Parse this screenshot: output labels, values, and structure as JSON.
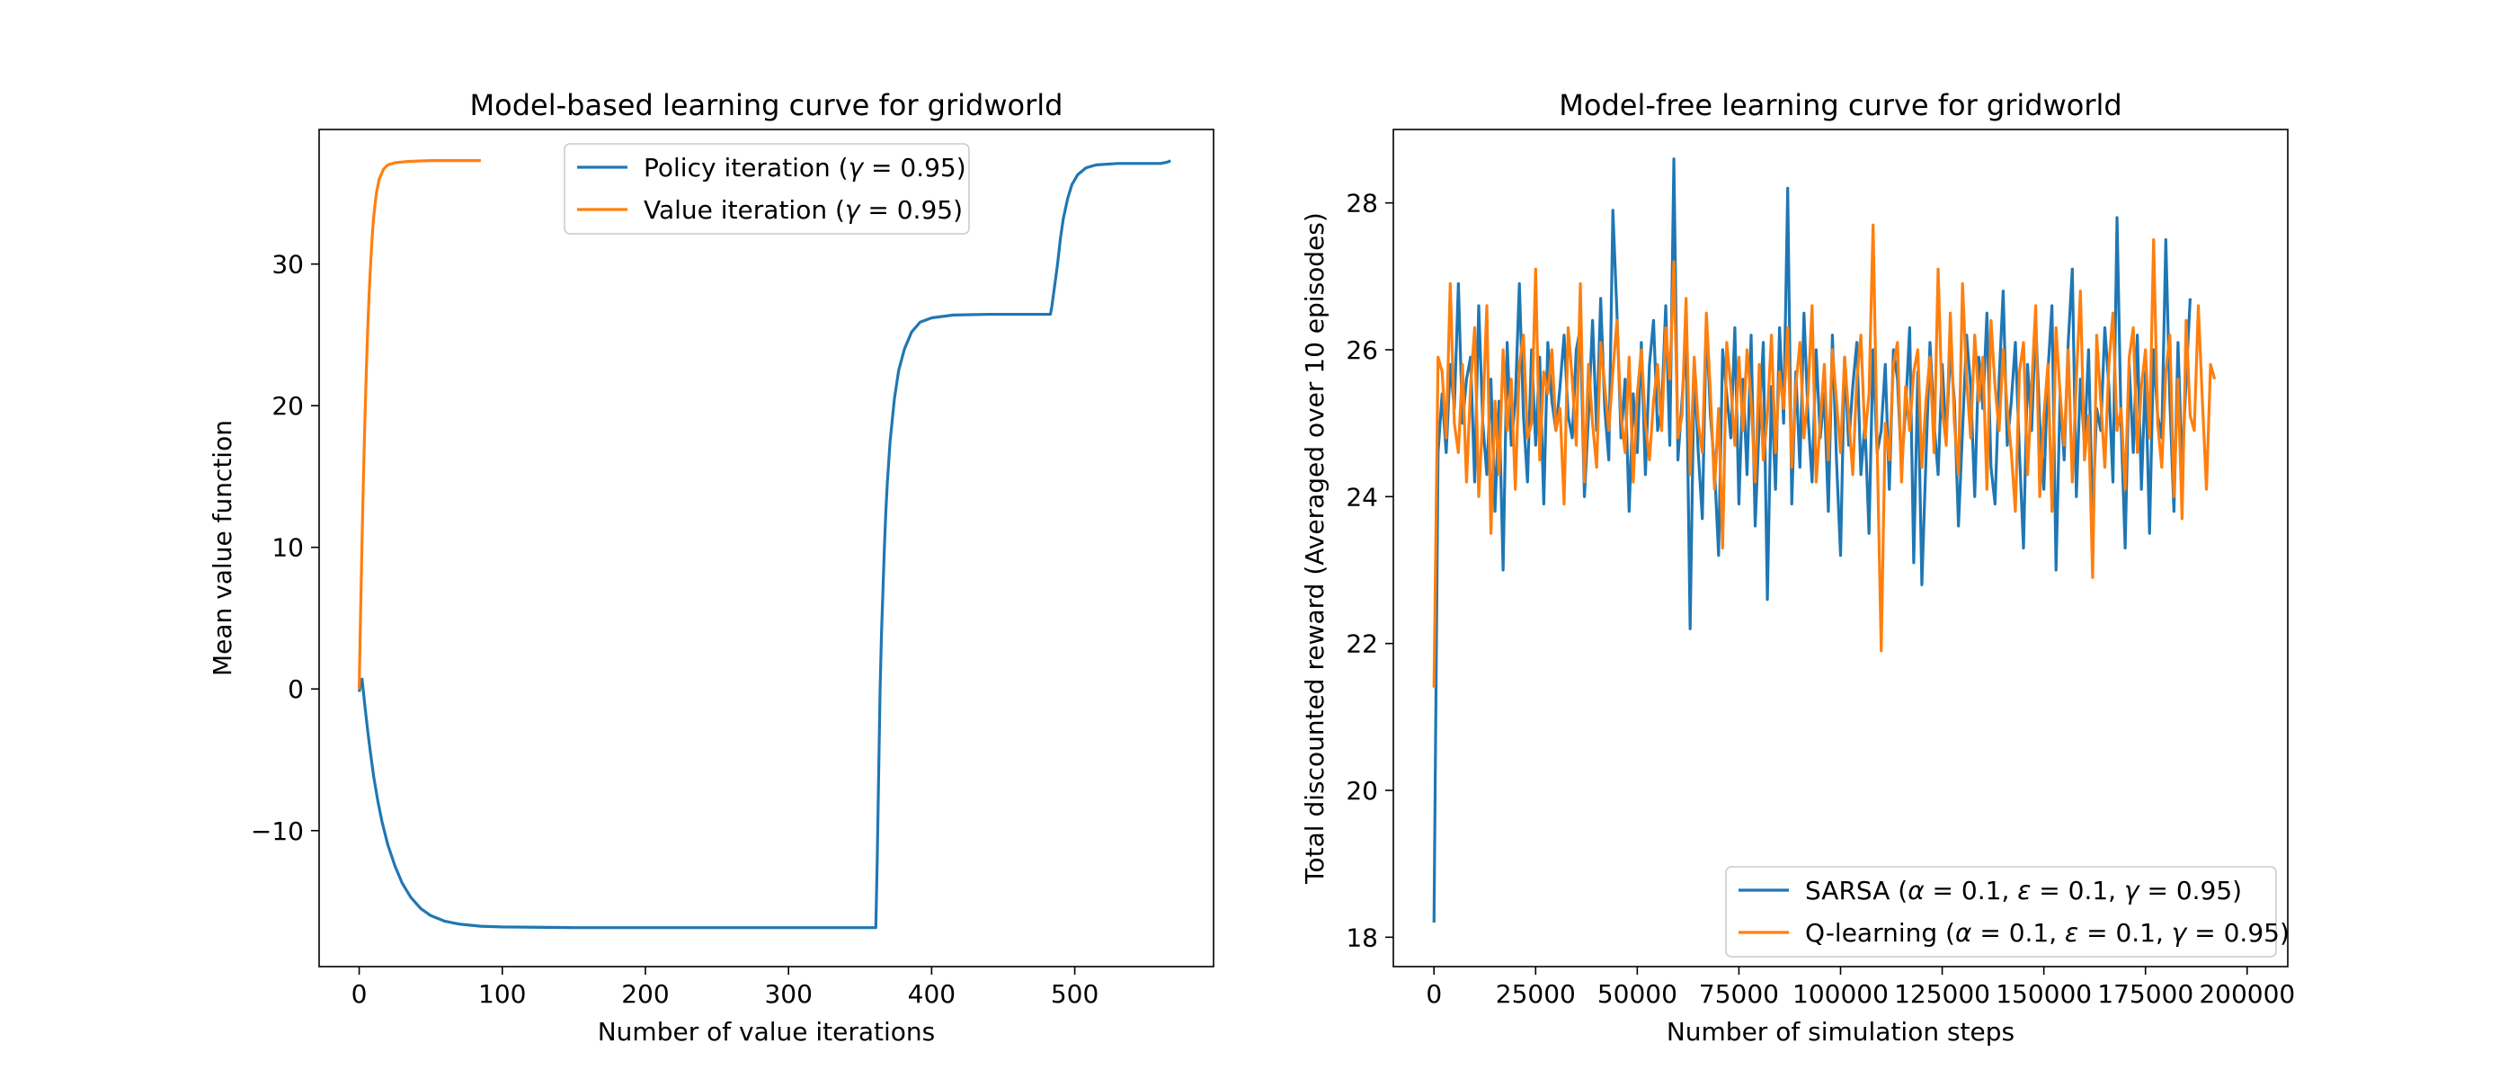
{
  "chart_data": [
    {
      "type": "line",
      "title": "Model-based learning curve for gridworld",
      "xlabel": "Number of value iterations",
      "ylabel": "Mean value function",
      "xlim": [
        -28,
        597
      ],
      "ylim": [
        -19.6,
        39.5
      ],
      "xticks": [
        0,
        100,
        200,
        300,
        400,
        500
      ],
      "yticks": [
        -10,
        0,
        10,
        20,
        30
      ],
      "ytick_labels": [
        "−10",
        "0",
        "10",
        "20",
        "30"
      ],
      "grid": false,
      "legend_position": "upper-center",
      "series": [
        {
          "name": "Policy iteration (γ = 0.95)",
          "name_parts": [
            "Policy iteration (",
            "γ",
            " = 0.95)"
          ],
          "color": "#1f77b4",
          "points": [
            [
              0,
              -0.2
            ],
            [
              2,
              0.7
            ],
            [
              4,
              -1.2
            ],
            [
              6,
              -3.0
            ],
            [
              8,
              -4.6
            ],
            [
              10,
              -6.1
            ],
            [
              13,
              -7.9
            ],
            [
              16,
              -9.4
            ],
            [
              20,
              -11.0
            ],
            [
              25,
              -12.5
            ],
            [
              30,
              -13.7
            ],
            [
              36,
              -14.7
            ],
            [
              43,
              -15.5
            ],
            [
              50,
              -16.0
            ],
            [
              60,
              -16.4
            ],
            [
              70,
              -16.6
            ],
            [
              85,
              -16.75
            ],
            [
              100,
              -16.8
            ],
            [
              150,
              -16.85
            ],
            [
              200,
              -16.85
            ],
            [
              250,
              -16.85
            ],
            [
              300,
              -16.85
            ],
            [
              361,
              -16.85
            ],
            [
              362,
              -12.0
            ],
            [
              363,
              -6.0
            ],
            [
              364,
              0.0
            ],
            [
              365,
              4.0
            ],
            [
              366,
              7.0
            ],
            [
              367,
              10.0
            ],
            [
              368,
              12.5
            ],
            [
              369,
              14.5
            ],
            [
              370,
              16.0
            ],
            [
              371,
              17.5
            ],
            [
              372,
              18.5
            ],
            [
              374,
              20.5
            ],
            [
              377,
              22.5
            ],
            [
              381,
              24.0
            ],
            [
              386,
              25.2
            ],
            [
              392,
              25.9
            ],
            [
              400,
              26.2
            ],
            [
              415,
              26.4
            ],
            [
              440,
              26.45
            ],
            [
              483,
              26.45
            ],
            [
              484,
              27.0
            ],
            [
              486,
              28.5
            ],
            [
              488,
              30.0
            ],
            [
              490,
              31.8
            ],
            [
              492,
              33.2
            ],
            [
              495,
              34.6
            ],
            [
              498,
              35.6
            ],
            [
              502,
              36.3
            ],
            [
              508,
              36.8
            ],
            [
              515,
              37.0
            ],
            [
              530,
              37.1
            ],
            [
              560,
              37.1
            ],
            [
              565,
              37.2
            ],
            [
              567,
              37.3
            ]
          ]
        },
        {
          "name": "Value iteration (γ = 0.95)",
          "name_parts": [
            "Value iteration (",
            "γ",
            " = 0.95)"
          ],
          "color": "#ff7f0e",
          "points": [
            [
              0,
              0
            ],
            [
              1,
              5.5
            ],
            [
              2,
              10.5
            ],
            [
              3,
              15.0
            ],
            [
              4,
              19.0
            ],
            [
              5,
              22.5
            ],
            [
              6,
              25.5
            ],
            [
              7,
              28.0
            ],
            [
              8,
              30.0
            ],
            [
              9,
              31.8
            ],
            [
              10,
              33.2
            ],
            [
              12,
              35.0
            ],
            [
              14,
              36.0
            ],
            [
              17,
              36.7
            ],
            [
              20,
              37.0
            ],
            [
              25,
              37.15
            ],
            [
              35,
              37.25
            ],
            [
              50,
              37.3
            ],
            [
              70,
              37.3
            ],
            [
              85,
              37.3
            ]
          ]
        }
      ]
    },
    {
      "type": "line",
      "title": "Model-free learning curve for gridworld",
      "xlabel": "Number of simulation steps",
      "ylabel": "Total discounted reward (Averaged over 10 episodes)",
      "xlim": [
        -10000,
        210000
      ],
      "ylim": [
        17.6,
        29.0
      ],
      "xticks": [
        0,
        25000,
        50000,
        75000,
        100000,
        125000,
        150000,
        175000,
        200000
      ],
      "yticks": [
        18,
        20,
        22,
        24,
        26,
        28
      ],
      "grid": false,
      "legend_position": "lower-right",
      "series": [
        {
          "name": "SARSA (α = 0.1, ε = 0.1, γ = 0.95)",
          "name_parts": [
            "SARSA (",
            "α",
            " = 0.1, ",
            "ε",
            " = 0.1, ",
            "γ",
            " = 0.95)"
          ],
          "color": "#1f77b4",
          "x_start": 0,
          "x_step": 1000,
          "values": [
            18.2,
            24.6,
            25.4,
            24.6,
            25.8,
            25.2,
            26.9,
            25.0,
            25.6,
            25.9,
            24.2,
            26.6,
            25.0,
            24.3,
            25.6,
            23.8,
            25.3,
            23.0,
            26.1,
            24.7,
            25.3,
            26.9,
            25.1,
            24.2,
            26.0,
            24.7,
            25.9,
            23.9,
            26.1,
            25.3,
            24.9,
            25.5,
            26.2,
            25.1,
            24.8,
            26.0,
            26.3,
            24.0,
            25.1,
            26.4,
            24.9,
            26.7,
            25.2,
            24.5,
            27.9,
            26.5,
            24.8,
            25.6,
            23.8,
            25.4,
            24.6,
            26.1,
            24.3,
            25.8,
            26.4,
            24.9,
            25.2,
            26.6,
            24.7,
            28.6,
            24.5,
            25.3,
            26.2,
            22.2,
            25.8,
            24.6,
            23.7,
            26.4,
            25.1,
            24.4,
            23.2,
            26.0,
            25.4,
            24.8,
            26.3,
            23.9,
            25.6,
            24.3,
            26.2,
            23.6,
            25.0,
            26.1,
            22.6,
            25.5,
            24.1,
            26.3,
            25.0,
            28.2,
            23.9,
            25.7,
            24.4,
            26.5,
            25.1,
            24.2,
            26.0,
            24.8,
            25.4,
            23.8,
            26.2,
            24.5,
            23.2,
            25.9,
            24.7,
            25.5,
            26.1,
            24.3,
            25.0,
            23.5,
            26.0,
            24.6,
            24.9,
            25.8,
            24.1,
            26.0,
            25.6,
            24.4,
            25.2,
            26.3,
            23.1,
            25.7,
            22.8,
            24.5,
            26.1,
            25.0,
            24.3,
            25.8,
            24.8,
            26.0,
            25.3,
            23.6,
            24.9,
            26.2,
            25.5,
            24.0,
            25.9,
            25.2,
            26.5,
            24.4,
            23.9,
            25.6,
            26.8,
            24.7,
            25.3,
            26.1,
            24.6,
            23.3,
            25.8,
            24.9,
            26.4,
            25.0,
            24.1,
            25.7,
            26.6,
            23.0,
            25.4,
            24.5,
            26.1,
            27.1,
            24.0,
            25.6,
            24.7,
            26.0,
            23.7,
            25.2,
            24.9,
            26.3,
            25.5,
            24.2,
            27.8,
            25.0,
            23.3,
            25.8,
            24.6,
            26.2,
            24.1,
            25.7,
            23.5,
            26.0,
            25.1,
            24.8,
            27.5,
            25.3,
            23.8,
            26.1,
            24.4,
            25.6,
            26.7
          ]
        },
        {
          "name": "Q-learning (α = 0.1, ε = 0.1, γ = 0.95)",
          "name_parts": [
            "Q-learning (",
            "α",
            " = 0.1, ",
            "ε",
            " = 0.1, ",
            "γ",
            " = 0.95)"
          ],
          "color": "#ff7f0e",
          "x_start": 0,
          "x_step": 1000,
          "values": [
            21.4,
            25.9,
            25.7,
            24.8,
            26.9,
            25.0,
            24.6,
            25.8,
            24.2,
            25.5,
            26.3,
            24.0,
            25.1,
            26.6,
            23.5,
            25.3,
            24.3,
            26.0,
            24.9,
            25.6,
            24.1,
            25.8,
            26.2,
            24.8,
            25.0,
            27.1,
            24.5,
            25.7,
            25.4,
            26.0,
            24.9,
            25.2,
            23.9,
            26.3,
            25.6,
            24.7,
            26.9,
            24.2,
            25.8,
            25.0,
            24.4,
            26.1,
            25.5,
            24.9,
            25.7,
            26.4,
            25.1,
            24.6,
            25.9,
            24.2,
            25.4,
            26.0,
            25.0,
            24.5,
            25.3,
            25.8,
            24.9,
            26.3,
            25.6,
            27.2,
            24.8,
            25.1,
            26.7,
            24.3,
            25.9,
            25.0,
            24.6,
            26.5,
            25.4,
            24.1,
            25.2,
            23.3,
            26.1,
            25.5,
            24.7,
            25.9,
            24.9,
            26.0,
            25.3,
            24.2,
            25.8,
            24.5,
            25.1,
            26.2,
            24.6,
            25.7,
            25.2,
            26.3,
            24.4,
            25.5,
            26.1,
            24.8,
            25.4,
            26.6,
            24.2,
            25.0,
            25.8,
            24.5,
            26.0,
            25.3,
            24.6,
            25.9,
            25.1,
            24.3,
            25.6,
            26.2,
            24.8,
            25.4,
            27.7,
            24.7,
            21.9,
            25.0,
            24.5,
            25.8,
            26.1,
            24.2,
            25.5,
            24.9,
            25.7,
            26.0,
            24.4,
            25.3,
            25.9,
            24.6,
            27.1,
            25.2,
            24.7,
            26.5,
            25.0,
            24.3,
            26.9,
            25.6,
            24.8,
            26.2,
            25.3,
            25.9,
            24.1,
            26.4,
            25.5,
            24.9,
            26.0,
            25.2,
            24.6,
            23.8,
            25.7,
            26.1,
            24.3,
            25.5,
            26.6,
            24.0,
            25.1,
            25.8,
            23.8,
            26.3,
            25.4,
            24.7,
            26.0,
            24.2,
            25.6,
            26.8,
            24.5,
            25.1,
            22.9,
            26.2,
            25.3,
            24.4,
            25.8,
            26.5,
            24.9,
            25.2,
            24.1,
            25.9,
            26.3,
            24.6,
            25.5,
            26.0,
            24.8,
            27.5,
            25.0,
            24.4,
            25.7,
            26.2,
            24.0,
            25.6,
            23.7,
            26.4,
            25.1,
            24.9,
            26.6,
            25.3,
            24.1,
            25.8,
            25.6
          ]
        }
      ]
    }
  ]
}
